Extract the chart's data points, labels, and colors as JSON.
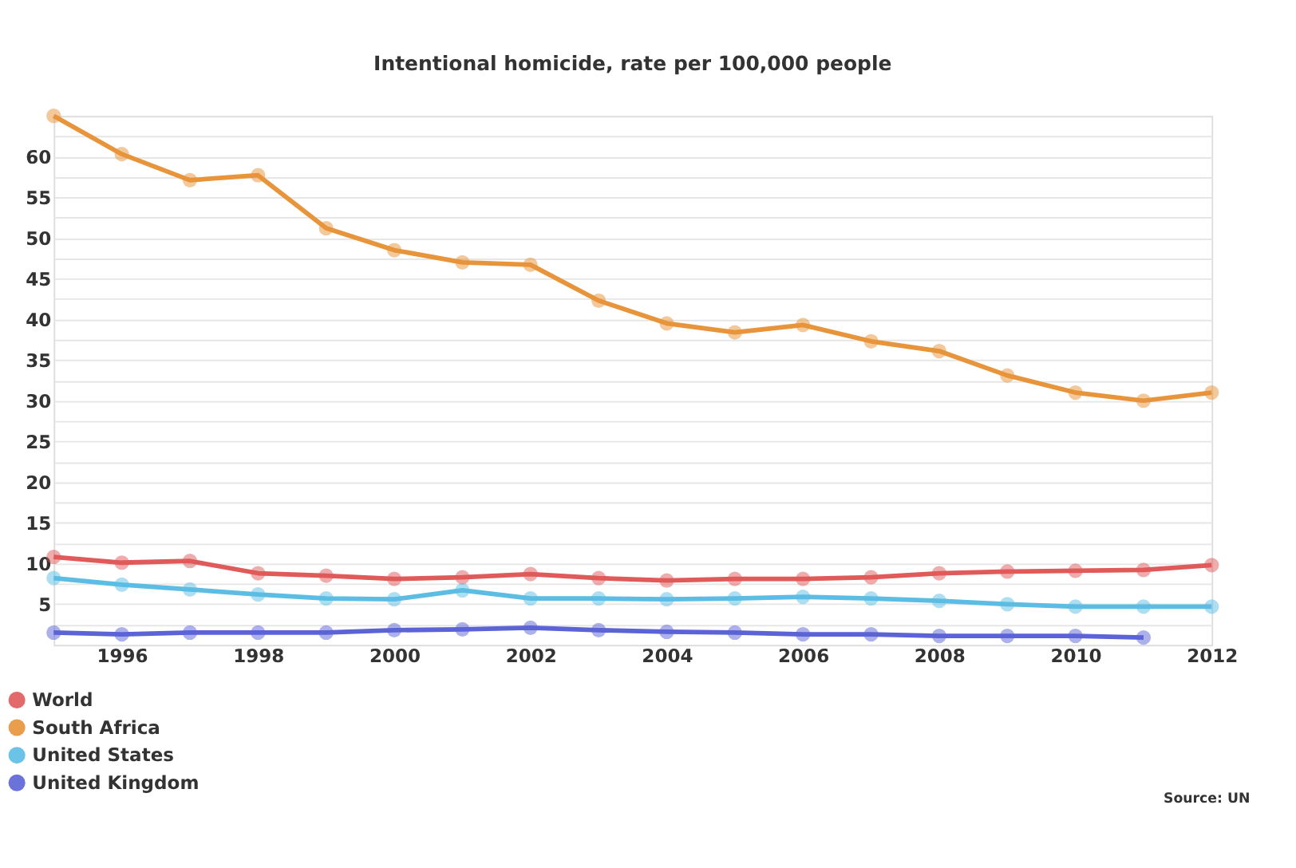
{
  "chart_data": {
    "type": "line",
    "title": "Intentional homicide, rate per 100,000 people",
    "x": [
      1995,
      1996,
      1997,
      1998,
      1999,
      2000,
      2001,
      2002,
      2003,
      2004,
      2005,
      2006,
      2007,
      2008,
      2009,
      2010,
      2011,
      2012
    ],
    "series": [
      {
        "name": "World",
        "color": "#e05a5a",
        "values": [
          10.8,
          10.1,
          10.3,
          8.8,
          8.5,
          8.1,
          8.3,
          8.7,
          8.2,
          7.9,
          8.1,
          8.1,
          8.3,
          8.8,
          9.0,
          9.1,
          9.2,
          9.8
        ]
      },
      {
        "name": "South Africa",
        "color": "#e8943a",
        "values": [
          65,
          60.3,
          57.1,
          57.7,
          51.2,
          48.5,
          47.0,
          46.7,
          42.3,
          39.5,
          38.4,
          39.3,
          37.3,
          36.1,
          33.1,
          31.0,
          30.0,
          31.0
        ]
      },
      {
        "name": "United States",
        "color": "#5bbde4",
        "values": [
          8.2,
          7.4,
          6.8,
          6.2,
          5.7,
          5.6,
          6.7,
          5.7,
          5.7,
          5.6,
          5.7,
          5.9,
          5.7,
          5.4,
          5.0,
          4.7,
          4.7,
          4.7
        ]
      },
      {
        "name": "United Kingdom",
        "color": "#5b63d6",
        "values": [
          1.5,
          1.3,
          1.5,
          1.5,
          1.5,
          1.8,
          1.9,
          2.1,
          1.8,
          1.6,
          1.5,
          1.3,
          1.3,
          1.1,
          1.1,
          1.1,
          0.9,
          null
        ]
      }
    ],
    "xlim": [
      1995,
      2012
    ],
    "xticks": [
      1996,
      1998,
      2000,
      2002,
      2004,
      2006,
      2008,
      2010,
      2012
    ],
    "ylim": [
      0,
      65
    ],
    "yticks": [
      {
        "value": 2.5,
        "label": null
      },
      5,
      {
        "value": 7.5,
        "label": null
      },
      10,
      {
        "value": 12.5,
        "label": null
      },
      15,
      {
        "value": 17.5,
        "label": null
      },
      20,
      {
        "value": 22.5,
        "label": null
      },
      25,
      {
        "value": 27.5,
        "label": null
      },
      30,
      {
        "value": 32.5,
        "label": null
      },
      35,
      {
        "value": 37.5,
        "label": null
      },
      40,
      {
        "value": 42.5,
        "label": null
      },
      45,
      {
        "value": 47.5,
        "label": null
      },
      50,
      {
        "value": 52.5,
        "label": null
      },
      55,
      {
        "value": 57.5,
        "label": null
      },
      60,
      {
        "value": 62.5,
        "label": null
      }
    ],
    "grid": "y",
    "legend": "bottom left",
    "marker": "circle",
    "line_style": "solid",
    "annotations": [
      "Source: UN"
    ]
  }
}
